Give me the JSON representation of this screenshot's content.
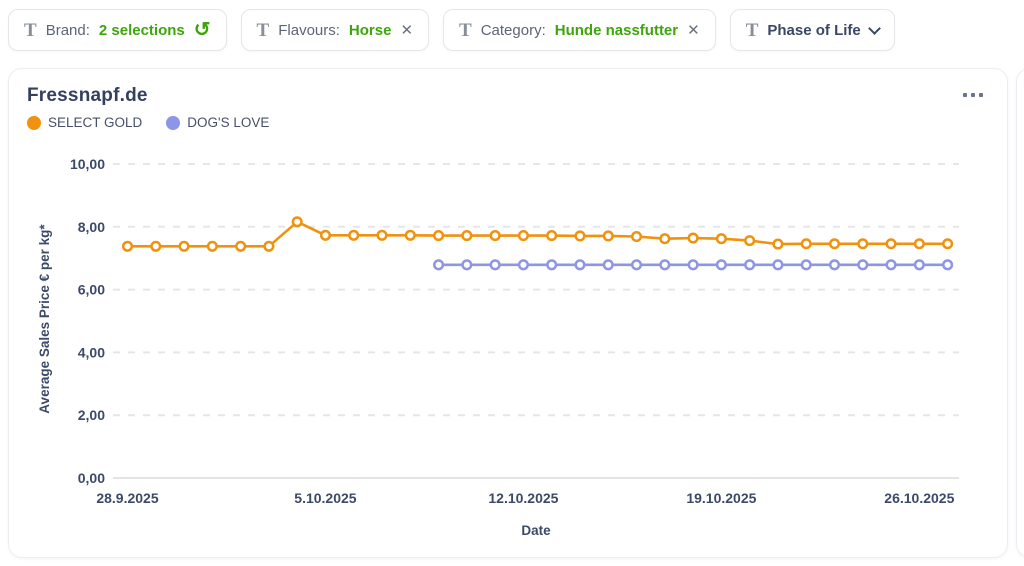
{
  "colors": {
    "accent_green": "#3ea50c",
    "navy_text": "#394867",
    "gray_text": "#5c6676",
    "grid_line": "#e4e6eb",
    "axis_line": "#d8dbe1",
    "series_orange": "#f0920e",
    "series_purple": "#8c95e6"
  },
  "icons": {
    "text_filter_glyph": "T",
    "reset_glyph": "↺",
    "close_glyph": "✕",
    "menu": "ellipsis",
    "chevron": "chevron-down"
  },
  "filters": {
    "items": [
      {
        "id": "brand",
        "label": "Brand:",
        "value": "2 selections",
        "trailing_icon": "reset-icon"
      },
      {
        "id": "flavours",
        "label": "Flavours:",
        "value": "Horse",
        "trailing_icon": "close-icon"
      },
      {
        "id": "category",
        "label": "Category:",
        "value": "Hunde nassfutter",
        "trailing_icon": "close-icon"
      },
      {
        "id": "phase-of-life",
        "label": "Phase of Life",
        "value": "",
        "trailing_icon": "chevron-down-icon"
      }
    ]
  },
  "card": {
    "title": "Fressnapf.de"
  },
  "chart_data": {
    "type": "line",
    "title": "Fressnapf.de",
    "xlabel": "Date",
    "ylabel": "Average Sales Price € per kg*",
    "ylim": [
      0,
      10
    ],
    "yticks": [
      0,
      2,
      4,
      6,
      8,
      10
    ],
    "ytick_labels": [
      "0,00",
      "2,00",
      "4,00",
      "6,00",
      "8,00",
      "10,00"
    ],
    "x_unit": "days since 28.9.2025, daily points",
    "x_tick_positions": [
      0,
      7,
      14,
      21,
      28
    ],
    "x_tick_labels": [
      "28.9.2025",
      "5.10.2025",
      "12.10.2025",
      "19.10.2025",
      "26.10.2025"
    ],
    "grid": "horizontal-dashed",
    "legend_position": "top-left",
    "series": [
      {
        "name": "SELECT GOLD",
        "color": "#f0920e",
        "start_day": 0,
        "dates": [
          "28.9.2025",
          "29.9.2025",
          "30.9.2025",
          "1.10.2025",
          "2.10.2025",
          "3.10.2025",
          "4.10.2025",
          "5.10.2025",
          "6.10.2025",
          "7.10.2025",
          "8.10.2025",
          "9.10.2025",
          "10.10.2025",
          "11.10.2025",
          "12.10.2025",
          "13.10.2025",
          "14.10.2025",
          "15.10.2025",
          "16.10.2025",
          "17.10.2025",
          "18.10.2025",
          "19.10.2025",
          "20.10.2025",
          "21.10.2025",
          "22.10.2025",
          "23.10.2025",
          "24.10.2025",
          "25.10.2025",
          "26.10.2025",
          "27.10.2025"
        ],
        "values": [
          7.38,
          7.38,
          7.38,
          7.38,
          7.38,
          7.38,
          8.16,
          7.73,
          7.73,
          7.73,
          7.73,
          7.72,
          7.72,
          7.72,
          7.72,
          7.72,
          7.71,
          7.71,
          7.69,
          7.62,
          7.64,
          7.62,
          7.56,
          7.45,
          7.46,
          7.46,
          7.46,
          7.46,
          7.46,
          7.46
        ]
      },
      {
        "name": "DOG'S LOVE",
        "color": "#8c95e6",
        "start_day": 11,
        "dates": [
          "9.10.2025",
          "10.10.2025",
          "11.10.2025",
          "12.10.2025",
          "13.10.2025",
          "14.10.2025",
          "15.10.2025",
          "16.10.2025",
          "17.10.2025",
          "18.10.2025",
          "19.10.2025",
          "20.10.2025",
          "21.10.2025",
          "22.10.2025",
          "23.10.2025",
          "24.10.2025",
          "25.10.2025",
          "26.10.2025",
          "27.10.2025"
        ],
        "values": [
          6.79,
          6.79,
          6.79,
          6.79,
          6.79,
          6.79,
          6.79,
          6.79,
          6.79,
          6.79,
          6.79,
          6.79,
          6.79,
          6.79,
          6.79,
          6.79,
          6.79,
          6.79,
          6.79
        ]
      }
    ]
  }
}
